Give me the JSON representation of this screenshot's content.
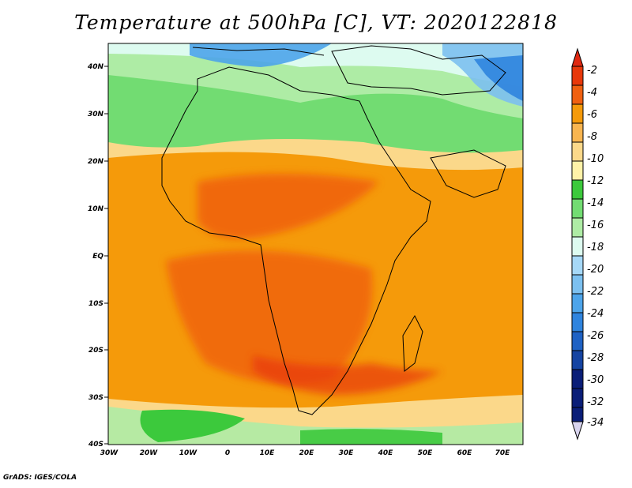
{
  "title": "Temperature at 500hPa [C], VT: 2020122818",
  "credit": "GrADS: IGES/COLA",
  "map": {
    "lat_ticks": [
      "40N",
      "30N",
      "20N",
      "10N",
      "EQ",
      "10S",
      "20S",
      "30S",
      "40S"
    ],
    "lon_ticks": [
      "30W",
      "20W",
      "10W",
      "0",
      "10E",
      "20E",
      "30E",
      "40E",
      "50E",
      "60E",
      "70E"
    ],
    "extent": {
      "lon": [
        -30,
        75
      ],
      "lat": [
        -40,
        45
      ]
    }
  },
  "colorbar": {
    "labels": [
      "-2",
      "-4",
      "-6",
      "-8",
      "-10",
      "-12",
      "-14",
      "-16",
      "-18",
      "-20",
      "-22",
      "-24",
      "-26",
      "-28",
      "-30",
      "-32",
      "-34"
    ],
    "colors": [
      "#e8380a",
      "#f06010",
      "#f59a0a",
      "#f8b550",
      "#fbd88a",
      "#fff2a8",
      "#3cc93c",
      "#72dc72",
      "#aeeca5",
      "#ddfbf0",
      "#a6d8f7",
      "#7cc0f0",
      "#4da4ea",
      "#2f84de",
      "#1f62c4",
      "#1544a2",
      "#0a1e78"
    ],
    "top_arrow_color": "#e02810",
    "bottom_arrow_color": "#d8d4ee"
  }
}
